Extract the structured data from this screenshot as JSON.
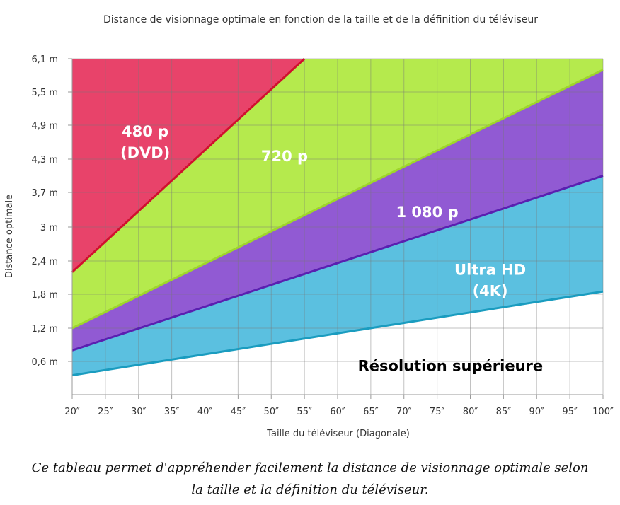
{
  "chart_data": {
    "type": "area",
    "title": "Distance de visionnage optimale en fonction de la taille et de la définition du téléviseur",
    "xlabel": "Taille du téléviseur (Diagonale)",
    "ylabel": "Distance optimale",
    "xlim": [
      20,
      100
    ],
    "ylim": [
      0,
      6.1
    ],
    "x_ticks": [
      20,
      25,
      30,
      35,
      40,
      45,
      50,
      55,
      60,
      65,
      70,
      75,
      80,
      85,
      90,
      95,
      100
    ],
    "x_tick_labels": [
      "20″",
      "25″",
      "30″",
      "35″",
      "40″",
      "45″",
      "50″",
      "55″",
      "60″",
      "65″",
      "70″",
      "75″",
      "80″",
      "85″",
      "90″",
      "95″",
      "100″"
    ],
    "y_ticks": [
      0.6,
      1.2,
      1.8,
      2.4,
      3.0,
      3.7,
      4.3,
      4.9,
      5.5,
      6.1
    ],
    "y_tick_labels": [
      "0,6 m",
      "1,2 m",
      "1,8 m",
      "2,4 m",
      "3 m",
      "3,7 m",
      "4,3 m",
      "4,9 m",
      "5,5 m",
      "6,1 m"
    ],
    "grid": true,
    "lines": [
      {
        "name": "480 p",
        "color": "#d0102e",
        "x": [
          20,
          55
        ],
        "y": [
          2.2,
          6.1
        ]
      },
      {
        "name": "720 p",
        "color": "#9ed62a",
        "x": [
          20,
          100
        ],
        "y": [
          1.2,
          5.9
        ]
      },
      {
        "name": "1 080 p",
        "color": "#5a1fb0",
        "x": [
          20,
          100
        ],
        "y": [
          0.8,
          4.0
        ]
      },
      {
        "name": "Ultra HD",
        "color": "#1a9cbf",
        "x": [
          20,
          100
        ],
        "y": [
          0.35,
          1.85
        ]
      }
    ],
    "regions": [
      {
        "name": "480 p",
        "color": "#e8436a"
      },
      {
        "name": "720 p",
        "color": "#b5ea4d"
      },
      {
        "name": "1 080 p",
        "color": "#915ad3"
      },
      {
        "name": "Ultra HD",
        "color": "#5bc0e0"
      }
    ],
    "annotations": [
      {
        "lines": [
          "480 p",
          "(DVD)"
        ],
        "x": 31,
        "y": 4.6,
        "color": "#ffffff"
      },
      {
        "lines": [
          "720 p"
        ],
        "x": 52,
        "y": 4.35,
        "color": "#ffffff"
      },
      {
        "lines": [
          "1 080 p"
        ],
        "x": 73.5,
        "y": 3.3,
        "color": "#ffffff"
      },
      {
        "lines": [
          "Ultra HD",
          "(4K)"
        ],
        "x": 83,
        "y": 2.05,
        "color": "#ffffff"
      },
      {
        "lines": [
          "Résolution supérieure"
        ],
        "x": 77,
        "y": 0.52,
        "color": "#000000"
      }
    ]
  },
  "caption": {
    "line1": "Ce tableau permet d'appréhender facilement la distance de visionnage optimale selon",
    "line2": "la taille et la définition du téléviseur."
  }
}
